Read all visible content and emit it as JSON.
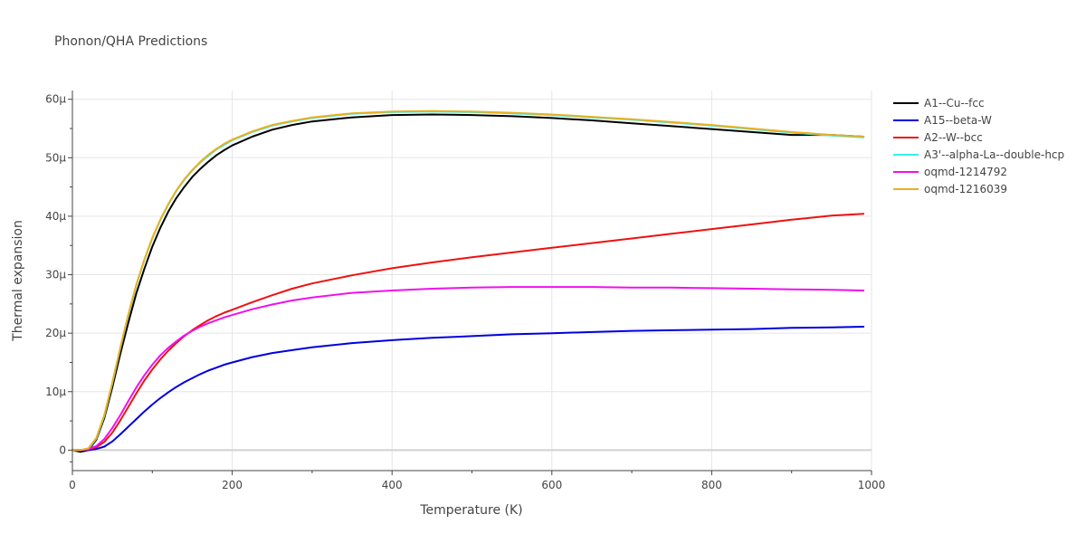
{
  "chart_data": {
    "type": "line",
    "title": "Phonon/QHA Predictions",
    "xlabel": "Temperature (K)",
    "ylabel": "Thermal expansion",
    "xlim": [
      0,
      1000
    ],
    "ylim": [
      -3.5e-06,
      6.15e-05
    ],
    "grid": true,
    "legend_position": "top-right",
    "x_ticks": [
      {
        "value": 0,
        "label": "0"
      },
      {
        "value": 200,
        "label": "200"
      },
      {
        "value": 400,
        "label": "400"
      },
      {
        "value": 600,
        "label": "600"
      },
      {
        "value": 800,
        "label": "800"
      },
      {
        "value": 1000,
        "label": "1000"
      }
    ],
    "y_ticks": [
      {
        "value": 0,
        "label": "0"
      },
      {
        "value": 1e-05,
        "label": "10μ"
      },
      {
        "value": 2e-05,
        "label": "20μ"
      },
      {
        "value": 3e-05,
        "label": "30μ"
      },
      {
        "value": 4e-05,
        "label": "40μ"
      },
      {
        "value": 5e-05,
        "label": "50μ"
      },
      {
        "value": 6e-05,
        "label": "60μ"
      }
    ],
    "x": [
      0,
      10,
      20,
      30,
      40,
      50,
      60,
      70,
      80,
      90,
      100,
      110,
      120,
      130,
      140,
      150,
      160,
      170,
      180,
      190,
      200,
      225,
      250,
      275,
      300,
      350,
      400,
      450,
      500,
      550,
      600,
      650,
      700,
      750,
      800,
      850,
      900,
      950,
      990
    ],
    "series": [
      {
        "name": "A1--Cu--fcc",
        "color": "#000000",
        "values": [
          0,
          -3e-07,
          0,
          1.8e-06,
          5.5e-06,
          1.08e-05,
          1.65e-05,
          2.18e-05,
          2.68e-05,
          3.1e-05,
          3.48e-05,
          3.8e-05,
          4.08e-05,
          4.31e-05,
          4.5e-05,
          4.67e-05,
          4.81e-05,
          4.93e-05,
          5.04e-05,
          5.13e-05,
          5.21e-05,
          5.36e-05,
          5.48e-05,
          5.56e-05,
          5.62e-05,
          5.69e-05,
          5.73e-05,
          5.74e-05,
          5.73e-05,
          5.71e-05,
          5.68e-05,
          5.64e-05,
          5.59e-05,
          5.54e-05,
          5.49e-05,
          5.44e-05,
          5.39e-05,
          5.39e-05,
          5.36e-05
        ]
      },
      {
        "name": "A15--beta-W",
        "color": "#0000dd",
        "values": [
          0,
          0,
          0,
          2e-07,
          6e-07,
          1.5e-06,
          2.7e-06,
          4e-06,
          5.3e-06,
          6.6e-06,
          7.8e-06,
          8.9e-06,
          9.9e-06,
          1.08e-05,
          1.16e-05,
          1.23e-05,
          1.3e-05,
          1.36e-05,
          1.41e-05,
          1.46e-05,
          1.5e-05,
          1.59e-05,
          1.66e-05,
          1.71e-05,
          1.76e-05,
          1.83e-05,
          1.88e-05,
          1.92e-05,
          1.95e-05,
          1.98e-05,
          2e-05,
          2.02e-05,
          2.04e-05,
          2.05e-05,
          2.06e-05,
          2.07e-05,
          2.09e-05,
          2.1e-05,
          2.11e-05
        ]
      },
      {
        "name": "A2--W--bcc",
        "color": "#ee1111",
        "values": [
          0,
          0,
          1e-07,
          5e-07,
          1.4e-06,
          3e-06,
          5.1e-06,
          7.4e-06,
          9.7e-06,
          1.19e-05,
          1.38e-05,
          1.55e-05,
          1.7e-05,
          1.83e-05,
          1.95e-05,
          2.05e-05,
          2.14e-05,
          2.22e-05,
          2.29e-05,
          2.35e-05,
          2.4e-05,
          2.53e-05,
          2.65e-05,
          2.76e-05,
          2.85e-05,
          2.99e-05,
          3.11e-05,
          3.21e-05,
          3.3e-05,
          3.38e-05,
          3.46e-05,
          3.54e-05,
          3.62e-05,
          3.7e-05,
          3.78e-05,
          3.86e-05,
          3.94e-05,
          4.01e-05,
          4.04e-05
        ]
      },
      {
        "name": "A3'--alpha-La--double-hcp",
        "color": "#33eeee",
        "values": [
          0,
          0,
          2e-07,
          2e-06,
          5.9e-06,
          1.15e-05,
          1.75e-05,
          2.31e-05,
          2.82e-05,
          3.25e-05,
          3.62e-05,
          3.93e-05,
          4.2e-05,
          4.43e-05,
          4.62e-05,
          4.78e-05,
          4.92e-05,
          5.03e-05,
          5.14e-05,
          5.22e-05,
          5.3e-05,
          5.44e-05,
          5.55e-05,
          5.62e-05,
          5.68e-05,
          5.75e-05,
          5.78e-05,
          5.79e-05,
          5.78e-05,
          5.76e-05,
          5.73e-05,
          5.69e-05,
          5.65e-05,
          5.6e-05,
          5.55e-05,
          5.49e-05,
          5.43e-05,
          5.38e-05,
          5.35e-05
        ]
      },
      {
        "name": "oqmd-1214792",
        "color": "#ee11ee",
        "values": [
          0,
          0,
          2e-07,
          7e-07,
          1.9e-06,
          3.8e-06,
          6e-06,
          8.4e-06,
          1.07e-05,
          1.28e-05,
          1.46e-05,
          1.62e-05,
          1.75e-05,
          1.86e-05,
          1.96e-05,
          2.04e-05,
          2.11e-05,
          2.17e-05,
          2.22e-05,
          2.27e-05,
          2.31e-05,
          2.41e-05,
          2.49e-05,
          2.56e-05,
          2.61e-05,
          2.69e-05,
          2.73e-05,
          2.76e-05,
          2.78e-05,
          2.79e-05,
          2.79e-05,
          2.79e-05,
          2.78e-05,
          2.78e-05,
          2.77e-05,
          2.76e-05,
          2.75e-05,
          2.74e-05,
          2.73e-05
        ]
      },
      {
        "name": "oqmd-1216039",
        "color": "#e8b020",
        "values": [
          0,
          0,
          3e-07,
          2.1e-06,
          6e-06,
          1.16e-05,
          1.76e-05,
          2.32e-05,
          2.83e-05,
          3.26e-05,
          3.63e-05,
          3.94e-05,
          4.21e-05,
          4.44e-05,
          4.63e-05,
          4.79e-05,
          4.93e-05,
          5.05e-05,
          5.15e-05,
          5.24e-05,
          5.31e-05,
          5.45e-05,
          5.56e-05,
          5.63e-05,
          5.69e-05,
          5.76e-05,
          5.79e-05,
          5.8e-05,
          5.79e-05,
          5.77e-05,
          5.74e-05,
          5.7e-05,
          5.66e-05,
          5.61e-05,
          5.56e-05,
          5.5e-05,
          5.44e-05,
          5.39e-05,
          5.36e-05
        ]
      }
    ]
  }
}
